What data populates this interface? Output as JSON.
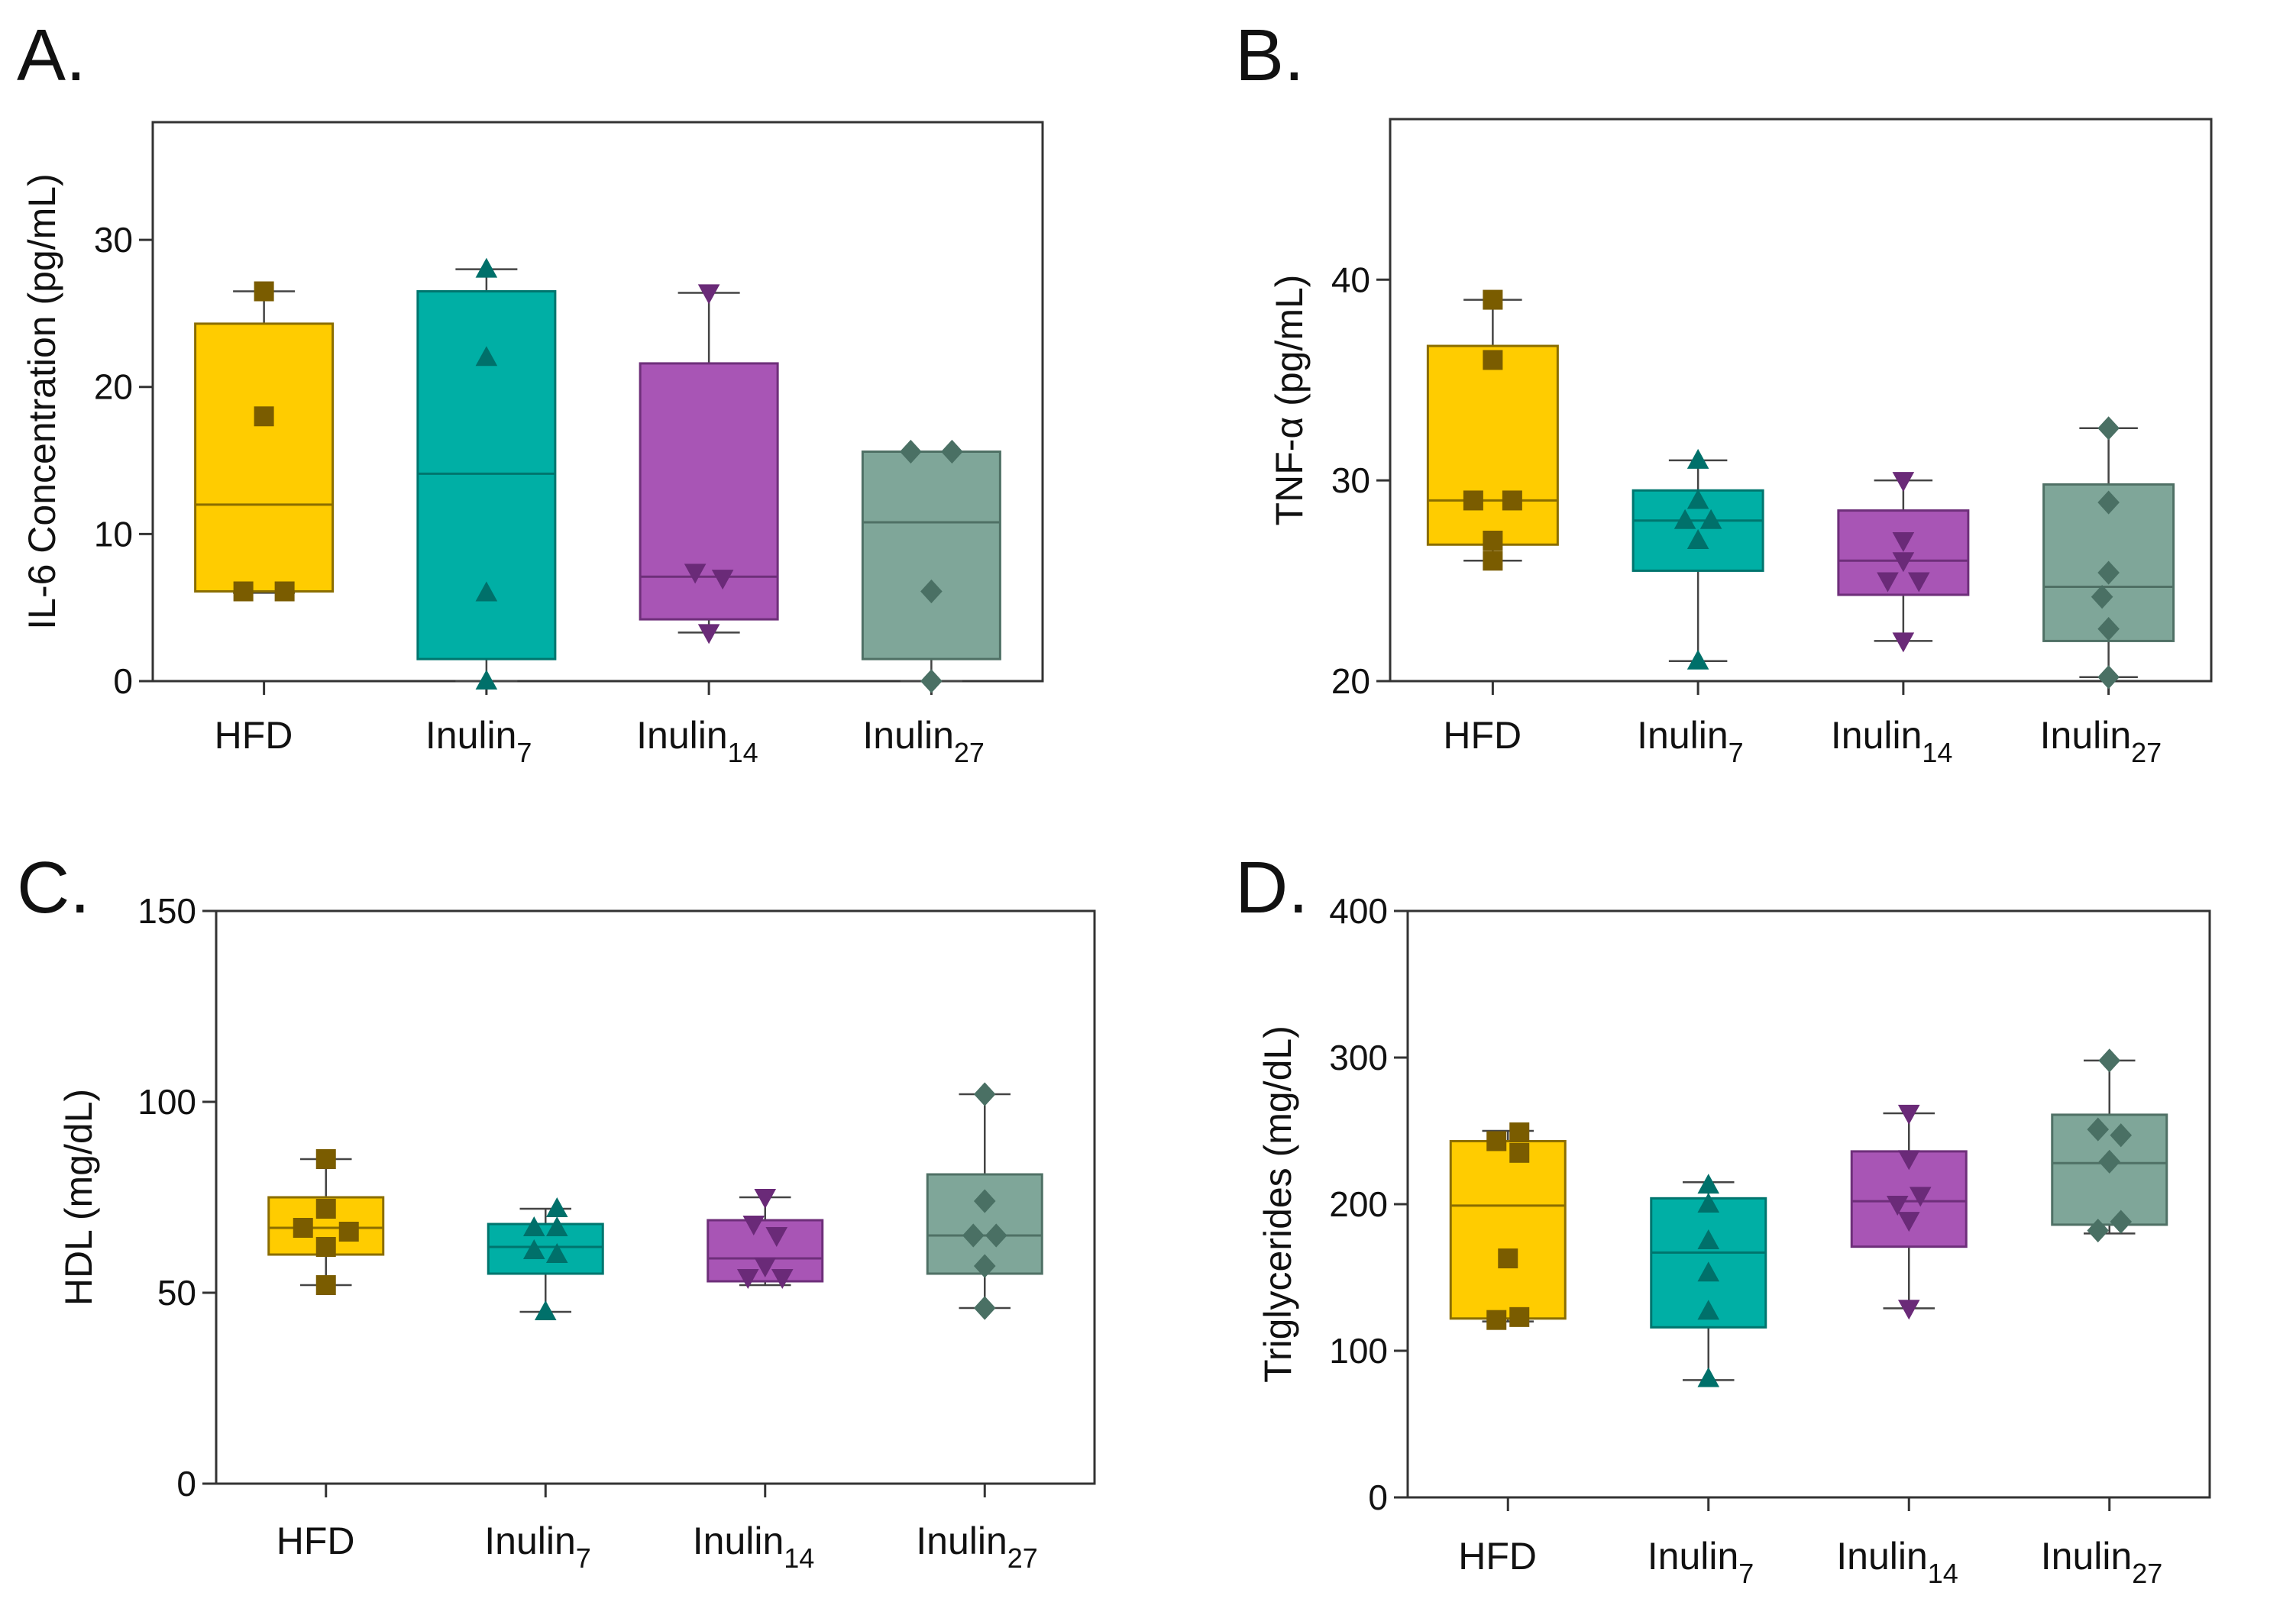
{
  "chart_data": [
    {
      "id": "A",
      "type": "box",
      "panel_label": "A.",
      "ylabel": "IL-6 Concentration (pg/mL)",
      "ylim": [
        0,
        38
      ],
      "yticks": [
        0,
        10,
        20,
        30
      ],
      "categories": [
        {
          "base": "HFD",
          "sub": ""
        },
        {
          "base": "Inulin",
          "sub": "7"
        },
        {
          "base": "Inulin",
          "sub": "14"
        },
        {
          "base": "Inulin",
          "sub": "27"
        }
      ],
      "boxes": [
        {
          "min": 6,
          "q1": 6.1,
          "median": 12,
          "q3": 24.3,
          "max": 26.5
        },
        {
          "min": 0,
          "q1": 1.5,
          "median": 14.1,
          "q3": 26.5,
          "max": 28
        },
        {
          "min": 3.3,
          "q1": 4.2,
          "median": 7.1,
          "q3": 21.6,
          "max": 26.4
        },
        {
          "min": 0,
          "q1": 1.5,
          "median": 10.8,
          "q3": 15.6,
          "max": 15.6
        }
      ],
      "points": [
        [
          [
            0,
            26.5
          ],
          [
            0,
            18
          ],
          [
            -0.15,
            6.1
          ],
          [
            0.15,
            6.1
          ]
        ],
        [
          [
            0,
            28
          ],
          [
            0,
            22
          ],
          [
            0,
            6
          ],
          [
            0,
            0
          ]
        ],
        [
          [
            0,
            26.4
          ],
          [
            -0.1,
            7.4
          ],
          [
            0.1,
            7.0
          ],
          [
            0,
            3.3
          ]
        ],
        [
          [
            -0.15,
            15.6
          ],
          [
            0.15,
            15.6
          ],
          [
            0,
            6.1
          ],
          [
            0,
            0
          ]
        ]
      ]
    },
    {
      "id": "B",
      "type": "box",
      "panel_label": "B.",
      "ylabel": "TNF-α (pg/mL)",
      "ylim": [
        20,
        48
      ],
      "yticks": [
        20,
        30,
        40
      ],
      "categories": [
        {
          "base": "HFD",
          "sub": ""
        },
        {
          "base": "Inulin",
          "sub": "7"
        },
        {
          "base": "Inulin",
          "sub": "14"
        },
        {
          "base": "Inulin",
          "sub": "27"
        }
      ],
      "boxes": [
        {
          "min": 26,
          "q1": 26.8,
          "median": 29,
          "q3": 36.7,
          "max": 39
        },
        {
          "min": 21,
          "q1": 25.5,
          "median": 28,
          "q3": 29.5,
          "max": 31
        },
        {
          "min": 22,
          "q1": 24.3,
          "median": 26,
          "q3": 28.5,
          "max": 30
        },
        {
          "min": 20.2,
          "q1": 22,
          "median": 24.7,
          "q3": 29.8,
          "max": 32.6
        }
      ],
      "points": [
        [
          [
            0,
            39
          ],
          [
            0,
            36
          ],
          [
            -0.15,
            29
          ],
          [
            0.15,
            29
          ],
          [
            0,
            27
          ],
          [
            0,
            26
          ]
        ],
        [
          [
            0,
            31
          ],
          [
            -0.1,
            28
          ],
          [
            0.1,
            28
          ],
          [
            0,
            29
          ],
          [
            0,
            27
          ],
          [
            0,
            21
          ]
        ],
        [
          [
            0,
            30
          ],
          [
            0,
            27
          ],
          [
            -0.12,
            25
          ],
          [
            0.12,
            25
          ],
          [
            0,
            26
          ],
          [
            0,
            22
          ]
        ],
        [
          [
            0,
            32.6
          ],
          [
            0,
            28.9
          ],
          [
            0,
            25.4
          ],
          [
            -0.05,
            24.2
          ],
          [
            0,
            22.6
          ],
          [
            0,
            20.2
          ]
        ]
      ]
    },
    {
      "id": "C",
      "type": "box",
      "panel_label": "C.",
      "ylabel": "HDL (mg/dL)",
      "ylim": [
        0,
        150
      ],
      "yticks": [
        0,
        50,
        100,
        150
      ],
      "categories": [
        {
          "base": "HFD",
          "sub": ""
        },
        {
          "base": "Inulin",
          "sub": "7"
        },
        {
          "base": "Inulin",
          "sub": "14"
        },
        {
          "base": "Inulin",
          "sub": "27"
        }
      ],
      "boxes": [
        {
          "min": 52,
          "q1": 60,
          "median": 67,
          "q3": 75,
          "max": 85
        },
        {
          "min": 45,
          "q1": 55,
          "median": 62,
          "q3": 68,
          "max": 72
        },
        {
          "min": 52,
          "q1": 53,
          "median": 59,
          "q3": 69,
          "max": 75
        },
        {
          "min": 46,
          "q1": 55,
          "median": 65,
          "q3": 81,
          "max": 102
        }
      ],
      "points": [
        [
          [
            0,
            85
          ],
          [
            -0.2,
            67
          ],
          [
            0.2,
            66
          ],
          [
            0,
            72
          ],
          [
            0,
            62
          ],
          [
            0,
            52
          ]
        ],
        [
          [
            0.1,
            72
          ],
          [
            -0.1,
            67
          ],
          [
            0.1,
            67
          ],
          [
            -0.1,
            61
          ],
          [
            0.1,
            60
          ],
          [
            0,
            45
          ]
        ],
        [
          [
            0,
            75
          ],
          [
            -0.1,
            68
          ],
          [
            0.1,
            65
          ],
          [
            -0.15,
            54
          ],
          [
            0.15,
            54
          ],
          [
            0,
            57
          ]
        ],
        [
          [
            0,
            102
          ],
          [
            0,
            74
          ],
          [
            -0.1,
            65
          ],
          [
            0.1,
            65
          ],
          [
            0,
            57
          ],
          [
            0,
            46
          ]
        ]
      ]
    },
    {
      "id": "D",
      "type": "box",
      "panel_label": "D.",
      "ylabel": "Triglycerides (mg/dL)",
      "ylim": [
        0,
        400
      ],
      "yticks": [
        0,
        100,
        200,
        300,
        400
      ],
      "categories": [
        {
          "base": "HFD",
          "sub": ""
        },
        {
          "base": "Inulin",
          "sub": "7"
        },
        {
          "base": "Inulin",
          "sub": "14"
        },
        {
          "base": "Inulin",
          "sub": "27"
        }
      ],
      "boxes": [
        {
          "min": 120,
          "q1": 122,
          "median": 199,
          "q3": 243,
          "max": 250
        },
        {
          "min": 80,
          "q1": 116,
          "median": 167,
          "q3": 204,
          "max": 215
        },
        {
          "min": 129,
          "q1": 171,
          "median": 202,
          "q3": 236,
          "max": 262
        },
        {
          "min": 180,
          "q1": 186,
          "median": 228,
          "q3": 261,
          "max": 298
        }
      ],
      "points": [
        [
          [
            -0.1,
            243
          ],
          [
            0.1,
            249
          ],
          [
            0.1,
            235
          ],
          [
            0,
            163
          ],
          [
            -0.1,
            121
          ],
          [
            0.1,
            123
          ]
        ],
        [
          [
            0,
            213
          ],
          [
            0,
            200
          ],
          [
            0,
            175
          ],
          [
            0,
            153
          ],
          [
            0,
            127
          ],
          [
            0,
            81
          ]
        ],
        [
          [
            0,
            262
          ],
          [
            0,
            231
          ],
          [
            -0.1,
            200
          ],
          [
            0.1,
            206
          ],
          [
            0,
            189
          ],
          [
            0,
            129
          ]
        ],
        [
          [
            0,
            298
          ],
          [
            -0.1,
            251
          ],
          [
            0.1,
            247
          ],
          [
            0,
            229
          ],
          [
            -0.1,
            182
          ],
          [
            0.1,
            188
          ]
        ]
      ]
    }
  ],
  "colors": {
    "fill": [
      "#FFCC00",
      "#00AFA5",
      "#A855B5",
      "#7FA699"
    ],
    "stroke": [
      "#8a6d00",
      "#00756e",
      "#6e2f7a",
      "#4f7065"
    ],
    "marker": [
      "#7a5c00",
      "#00706a",
      "#6a2a78",
      "#4a7064"
    ],
    "markers": [
      "square",
      "triangle-up",
      "triangle-down",
      "diamond"
    ]
  }
}
